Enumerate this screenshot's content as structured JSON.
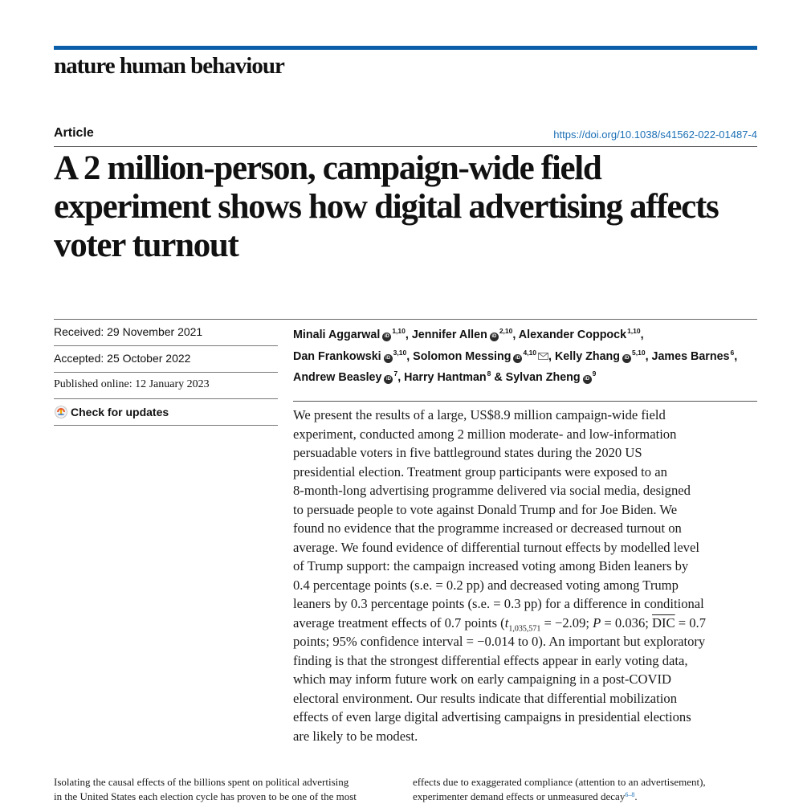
{
  "journal": {
    "name": "nature human behaviour"
  },
  "article": {
    "type": "Article",
    "doi": "https://doi.org/10.1038/s41562-022-01487-4",
    "title": "A 2 million-person, campaign-wide field experiment shows how digital advertising affects voter turnout"
  },
  "dates": {
    "received": "Received: 29 November 2021",
    "accepted": "Accepted: 25 October 2022",
    "published": "Published online: 12 January 2023"
  },
  "check_updates": {
    "label": "Check for updates",
    "icon": "check-for-updates-icon"
  },
  "authors": [
    {
      "name": "Minali Aggarwal",
      "aff": "1,10",
      "orcid": true
    },
    {
      "name": "Jennifer Allen",
      "aff": "2,10",
      "orcid": true
    },
    {
      "name": "Alexander Coppock",
      "aff": "1,10",
      "orcid": false
    },
    {
      "name": "Dan Frankowski",
      "aff": "3,10",
      "orcid": true
    },
    {
      "name": "Solomon Messing",
      "aff": "4,10",
      "orcid": true,
      "corresponding": true
    },
    {
      "name": "Kelly Zhang",
      "aff": "5,10",
      "orcid": true
    },
    {
      "name": "James Barnes",
      "aff": "6",
      "orcid": false
    },
    {
      "name": "Andrew Beasley",
      "aff": "7",
      "orcid": true
    },
    {
      "name": "Harry Hantman",
      "aff": "8",
      "orcid": false
    },
    {
      "name": "Sylvan Zheng",
      "aff": "9",
      "orcid": true
    }
  ],
  "author_separators": {
    "comma": ", ",
    "and": " & "
  },
  "abstract": {
    "l1": "We present the results of a large, US$8.9 million campaign-wide field",
    "l2": "experiment, conducted among 2 million moderate- and low-information",
    "l3": "persuadable voters in five battleground states during the 2020 US",
    "l4": "presidential election. Treatment group participants were exposed to an",
    "l5": "8-month-long advertising programme delivered via social media, designed",
    "l6": "to persuade people to vote against Donald Trump and for Joe Biden. We",
    "l7": "found no evidence that the programme increased or decreased turnout on",
    "l8": "average. We found evidence of differential turnout effects by modelled level",
    "l9": "of Trump support: the campaign increased voting among Biden leaners by",
    "l10": "0.4 percentage points (s.e. = 0.2 pp) and decreased voting among Trump",
    "l11": "leaners by 0.3 percentage points (s.e. = 0.3 pp) for a difference in conditional",
    "l12_a": "average treatment effects of 0.7 points (",
    "l12_t": "t",
    "l12_sub": "1,035,571",
    "l12_b": " = −2.09; ",
    "l12_p": "P",
    "l12_c": " = 0.036; ",
    "l12_dic": "DIC",
    "l12_d": " = 0.7",
    "l13": "points; 95% confidence interval = −0.014 to 0). An important but exploratory",
    "l14": "finding is that the strongest differential effects appear in early voting data,",
    "l15": "which may inform future work on early campaigning in a post-COVID",
    "l16": "electoral environment. Our results indicate that differential mobilization",
    "l17": "effects of even large digital advertising campaigns in presidential elections",
    "l18": "are likely to be modest."
  },
  "body": {
    "left_l1": "Isolating the causal effects of the billions spent on political advertising",
    "left_l2": "in the United States each election cycle has proven to be one of the most",
    "right_l1": "effects due to exaggerated compliance (attention to an advertisement),",
    "right_l2": "experimenter demand effects or unmeasured decay",
    "right_l2_ref": "6–8",
    "right_l2_end": "."
  },
  "colors": {
    "accent": "#0b5ea8",
    "link": "#1a6fb5"
  }
}
